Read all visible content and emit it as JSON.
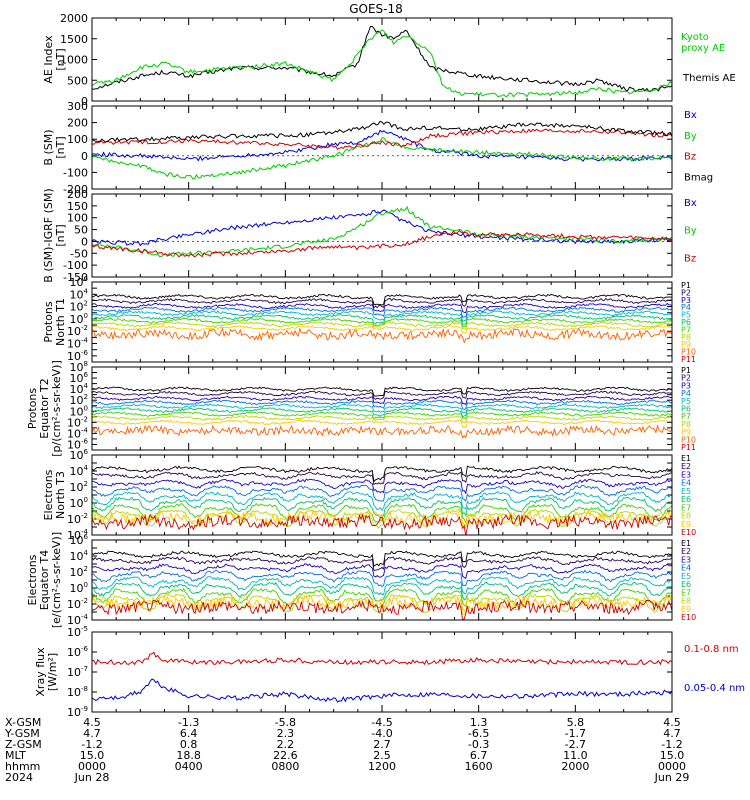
{
  "title": "GOES-18",
  "chart_data": [
    {
      "type": "line",
      "panel": "ae",
      "ylabel_lines": [
        "AE Index",
        "[nT]"
      ],
      "ylim": [
        0,
        2000
      ],
      "yticks": [
        "0",
        "500",
        "1000",
        "1500",
        "2000"
      ],
      "series": [
        {
          "name": "Themis AE",
          "color": "#000000",
          "x": [
            0,
            2,
            3,
            4,
            6,
            8,
            10,
            11,
            11.5,
            12,
            12.5,
            13,
            14,
            15,
            16,
            18,
            20,
            21,
            22,
            23,
            24
          ],
          "values": [
            300,
            600,
            700,
            600,
            800,
            800,
            600,
            900,
            1800,
            1600,
            1500,
            1700,
            800,
            700,
            600,
            500,
            400,
            500,
            300,
            250,
            350
          ]
        },
        {
          "name": "Kyoto proxy AE",
          "color": "#00cc00",
          "x": [
            0,
            1,
            2,
            3,
            4,
            6,
            8,
            10,
            11,
            11.5,
            12,
            12.5,
            13,
            14,
            14.5,
            15,
            16,
            18,
            20,
            21,
            22,
            23,
            24
          ],
          "values": [
            400,
            500,
            800,
            900,
            700,
            800,
            900,
            500,
            1100,
            1500,
            1700,
            1400,
            1600,
            1200,
            400,
            200,
            150,
            150,
            200,
            300,
            200,
            250,
            450
          ]
        }
      ],
      "legend_lines": [
        [
          "Kyoto",
          "proxy AE"
        ],
        [
          "Themis AE"
        ]
      ]
    },
    {
      "type": "line",
      "panel": "bsm",
      "ylabel_lines": [
        "B (SM)",
        "[nT]"
      ],
      "ylim": [
        -200,
        300
      ],
      "yticks": [
        "-200",
        "-100",
        "0",
        "100",
        "200",
        "300"
      ],
      "series": [
        {
          "name": "Bx",
          "color": "#0000cc",
          "x": [
            0,
            2,
            4,
            6,
            8,
            10,
            11,
            12,
            13,
            14,
            15,
            16,
            18,
            20,
            22,
            24
          ],
          "values": [
            10,
            0,
            -20,
            0,
            20,
            70,
            80,
            150,
            100,
            30,
            20,
            0,
            -10,
            -20,
            -20,
            -10
          ]
        },
        {
          "name": "By",
          "color": "#00cc00",
          "x": [
            0,
            2,
            3,
            4,
            6,
            8,
            10,
            11,
            12,
            13,
            14,
            15,
            16,
            18,
            20,
            22,
            24
          ],
          "values": [
            -10,
            -60,
            -110,
            -130,
            -100,
            -60,
            0,
            50,
            100,
            50,
            40,
            30,
            20,
            10,
            -10,
            -20,
            -10
          ]
        },
        {
          "name": "Bz",
          "color": "#cc0000",
          "x": [
            0,
            2,
            4,
            6,
            8,
            10,
            11,
            12,
            13,
            14,
            15,
            16,
            18,
            20,
            22,
            24
          ],
          "values": [
            80,
            80,
            90,
            80,
            70,
            50,
            60,
            80,
            60,
            120,
            130,
            140,
            150,
            150,
            140,
            120
          ]
        },
        {
          "name": "Bmag",
          "color": "#000000",
          "x": [
            0,
            2,
            4,
            6,
            8,
            10,
            11,
            12,
            13,
            14,
            15,
            16,
            18,
            20,
            22,
            24
          ],
          "values": [
            90,
            100,
            110,
            120,
            120,
            140,
            160,
            200,
            160,
            170,
            160,
            160,
            190,
            180,
            150,
            130
          ]
        }
      ]
    },
    {
      "type": "line",
      "panel": "bigrf",
      "ylabel_lines": [
        "B (SM)-IGRF (SM)",
        "[nT]"
      ],
      "ylim": [
        -150,
        200
      ],
      "yticks": [
        "-150",
        "-100",
        "-50",
        "0",
        "50",
        "100",
        "150",
        "200"
      ],
      "series": [
        {
          "name": "Bx",
          "color": "#0000cc",
          "x": [
            0,
            2,
            4,
            6,
            8,
            10,
            11,
            12,
            13,
            14,
            15,
            16,
            18,
            20,
            22,
            24
          ],
          "values": [
            0,
            -10,
            30,
            60,
            80,
            100,
            110,
            130,
            80,
            40,
            30,
            20,
            10,
            0,
            0,
            10
          ]
        },
        {
          "name": "By",
          "color": "#00cc00",
          "x": [
            0,
            2,
            3,
            4,
            6,
            8,
            10,
            11,
            12,
            13,
            14,
            15,
            16,
            18,
            20,
            22,
            24
          ],
          "values": [
            -10,
            -40,
            -60,
            -50,
            -40,
            -20,
            10,
            60,
            120,
            140,
            60,
            50,
            30,
            20,
            10,
            0,
            10
          ]
        },
        {
          "name": "Bz",
          "color": "#cc0000",
          "x": [
            0,
            2,
            4,
            6,
            8,
            10,
            11,
            12,
            13,
            14,
            15,
            16,
            18,
            20,
            22,
            24
          ],
          "values": [
            -20,
            -40,
            -60,
            -50,
            -40,
            -20,
            -30,
            -20,
            -10,
            20,
            40,
            30,
            30,
            20,
            15,
            10
          ]
        }
      ]
    },
    {
      "type": "line",
      "panel": "protons-north",
      "log": true,
      "ylabel_lines": [
        "Protons",
        "North T1"
      ],
      "ylim_exp": [
        -7,
        6
      ],
      "ytick_exps": [
        -6,
        -4,
        -2,
        0,
        2,
        4,
        6
      ],
      "series_names": [
        "P1",
        "P2",
        "P3",
        "P4",
        "P5",
        "P6",
        "P7",
        "P8",
        "P9",
        "P10",
        "P11"
      ],
      "levels_exp": [
        3.6,
        2.9,
        2.1,
        1.5,
        0.9,
        0.3,
        -0.3,
        -0.9,
        -1.5,
        -2.5,
        null
      ]
    },
    {
      "type": "line",
      "panel": "protons-equator",
      "log": true,
      "ylabel_lines": [
        "Protons",
        "Equator T2",
        "[p/(cm²-s-sr-keV)]"
      ],
      "ylim_exp": [
        -7,
        8
      ],
      "ytick_exps": [
        -6,
        -4,
        -2,
        0,
        2,
        4,
        6,
        8
      ],
      "series_names": [
        "P1",
        "P2",
        "P3",
        "P4",
        "P5",
        "P6",
        "P7",
        "P8",
        "P9",
        "P10",
        "P11"
      ],
      "levels_exp": [
        4.0,
        3.2,
        2.3,
        1.6,
        0.9,
        0.2,
        -0.5,
        -1.2,
        -2.0,
        -3.5,
        null
      ]
    },
    {
      "type": "line",
      "panel": "electrons-north",
      "log": true,
      "ylabel_lines": [
        "Electrons",
        "North T3"
      ],
      "ylim_exp": [
        -4,
        6
      ],
      "ytick_exps": [
        -4,
        -2,
        0,
        2,
        4,
        6
      ],
      "series_names": [
        "E1",
        "E2",
        "E3",
        "E4",
        "E5",
        "E6",
        "E7",
        "E8",
        "E9",
        "E10"
      ],
      "levels_exp": [
        4.2,
        3.5,
        2.6,
        1.8,
        1.0,
        0.3,
        -0.5,
        -1.2,
        -1.8,
        -2.4
      ]
    },
    {
      "type": "line",
      "panel": "electrons-equator",
      "log": true,
      "ylabel_lines": [
        "Electrons",
        "Equator T4",
        "[e/(cm²-s-sr-keV)]"
      ],
      "ylim_exp": [
        -4,
        6
      ],
      "ytick_exps": [
        -4,
        -2,
        0,
        2,
        4,
        6
      ],
      "series_names": [
        "E1",
        "E2",
        "E3",
        "E4",
        "E5",
        "E6",
        "E7",
        "E8",
        "E9",
        "E10"
      ],
      "levels_exp": [
        4.2,
        3.5,
        2.6,
        1.8,
        1.0,
        0.3,
        -0.5,
        -1.2,
        -1.8,
        -2.4
      ]
    },
    {
      "type": "line",
      "panel": "xray",
      "log": true,
      "ylabel_lines": [
        "Xray flux",
        "[W/m²]"
      ],
      "ylim_exp": [
        -9,
        -5
      ],
      "ytick_exps": [
        -9,
        -8,
        -7,
        -6,
        -5
      ],
      "series": [
        {
          "name": "0.1-0.8 nm",
          "color": "#cc0000",
          "x": [
            0,
            2,
            2.5,
            3,
            4,
            6,
            8,
            10,
            12,
            14,
            16,
            18,
            20,
            22,
            24
          ],
          "values_exp": [
            -6.5,
            -6.5,
            -6.1,
            -6.4,
            -6.5,
            -6.5,
            -6.4,
            -6.5,
            -6.5,
            -6.5,
            -6.4,
            -6.5,
            -6.5,
            -6.5,
            -6.5
          ]
        },
        {
          "name": "0.05-0.4 nm",
          "color": "#0000cc",
          "x": [
            0,
            1,
            2,
            2.5,
            3,
            4,
            6,
            8,
            10,
            12,
            14,
            16,
            18,
            20,
            22,
            24
          ],
          "values_exp": [
            -8.3,
            -8.3,
            -8.0,
            -7.4,
            -7.8,
            -8.2,
            -8.3,
            -8.1,
            -8.4,
            -8.2,
            -8.1,
            -8.2,
            -8.2,
            -8.1,
            -8.1,
            -8.0
          ]
        }
      ]
    }
  ],
  "ephemeris": {
    "labels": [
      "X-GSM",
      "Y-GSM",
      "Z-GSM",
      "MLT",
      "hhmm",
      "2024"
    ],
    "columns": [
      [
        "4.5",
        "4.7",
        "-1.2",
        "15.0",
        "0000",
        "Jun 28"
      ],
      [
        "-1.3",
        "6.4",
        "0.8",
        "18.8",
        "0400",
        ""
      ],
      [
        "-5.8",
        "2.3",
        "2.2",
        "22.6",
        "0800",
        ""
      ],
      [
        "-4.5",
        "-4.0",
        "2.7",
        "2.5",
        "1200",
        ""
      ],
      [
        "1.3",
        "-6.5",
        "-0.3",
        "6.7",
        "1600",
        ""
      ],
      [
        "5.8",
        "-1.7",
        "-2.7",
        "11.0",
        "2000",
        ""
      ],
      [
        "4.5",
        "4.7",
        "-1.2",
        "15.0",
        "0000",
        "Jun 29"
      ]
    ]
  }
}
